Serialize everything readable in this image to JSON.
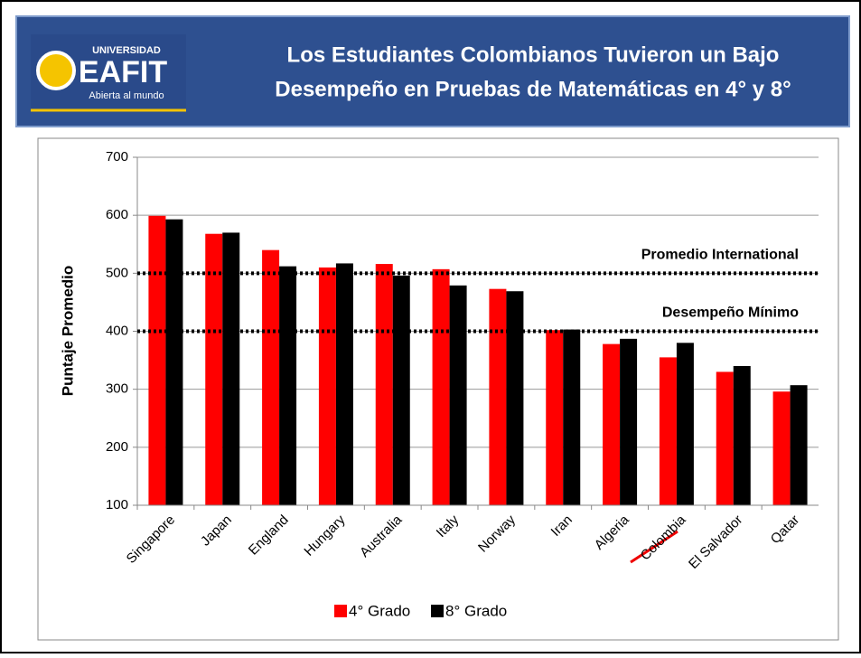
{
  "header": {
    "title": [
      "Los Estudiantes Colombianos Tuvieron un Bajo",
      "Desempeño en Pruebas de Matemáticas en 4° y 8°"
    ],
    "logo": {
      "top": "UNIVERSIDAD",
      "name": "EAFIT",
      "tagline": "Abierta al mundo"
    }
  },
  "chart_data": {
    "type": "bar",
    "y_label": "Puntaje Promedio",
    "categories": [
      "Singapore",
      "Japan",
      "England",
      "Hungary",
      "Australia",
      "Italy",
      "Norway",
      "Iran",
      "Algeria",
      "Colombia",
      "El Salvador",
      "Qatar"
    ],
    "series": [
      {
        "name": "4° Grado",
        "color": "#ff0000",
        "values": [
          599,
          568,
          540,
          510,
          516,
          507,
          473,
          402,
          378,
          355,
          330,
          296
        ]
      },
      {
        "name": "8° Grado",
        "color": "#000000",
        "values": [
          593,
          570,
          512,
          517,
          496,
          479,
          469,
          403,
          387,
          380,
          340,
          307
        ]
      }
    ],
    "reference_lines": [
      {
        "value": 500,
        "label": "Promedio International"
      },
      {
        "value": 400,
        "label": "Desempeño Mínimo"
      }
    ],
    "ylim": [
      100,
      700
    ],
    "yticks": [
      100,
      200,
      300,
      400,
      500,
      600,
      700
    ],
    "grid": true,
    "legend": "bottom"
  }
}
